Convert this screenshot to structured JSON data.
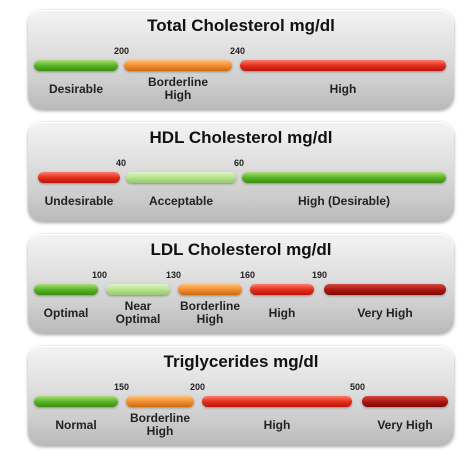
{
  "panels": [
    {
      "title": "Total Cholesterol mg/dl",
      "ticks": [
        "200",
        "240"
      ],
      "segments": [
        {
          "label": "Desirable",
          "color": "green"
        },
        {
          "label": "Borderline\nHigh",
          "color": "orange"
        },
        {
          "label": "High",
          "color": "red"
        }
      ]
    },
    {
      "title": "HDL Cholesterol mg/dl",
      "ticks": [
        "40",
        "60"
      ],
      "segments": [
        {
          "label": "Undesirable",
          "color": "red"
        },
        {
          "label": "Acceptable",
          "color": "light-green"
        },
        {
          "label": "High (Desirable)",
          "color": "green"
        }
      ]
    },
    {
      "title": "LDL Cholesterol mg/dl",
      "ticks": [
        "100",
        "130",
        "160",
        "190"
      ],
      "segments": [
        {
          "label": "Optimal",
          "color": "green"
        },
        {
          "label": "Near\nOptimal",
          "color": "light-green"
        },
        {
          "label": "Borderline\nHigh",
          "color": "orange"
        },
        {
          "label": "High",
          "color": "red"
        },
        {
          "label": "Very High",
          "color": "dark-red"
        }
      ]
    },
    {
      "title": "Triglycerides mg/dl",
      "ticks": [
        "150",
        "200",
        "500"
      ],
      "segments": [
        {
          "label": "Normal",
          "color": "green"
        },
        {
          "label": "Borderline\nHigh",
          "color": "orange"
        },
        {
          "label": "High",
          "color": "red"
        },
        {
          "label": "Very High",
          "color": "dark-red"
        }
      ]
    }
  ]
}
